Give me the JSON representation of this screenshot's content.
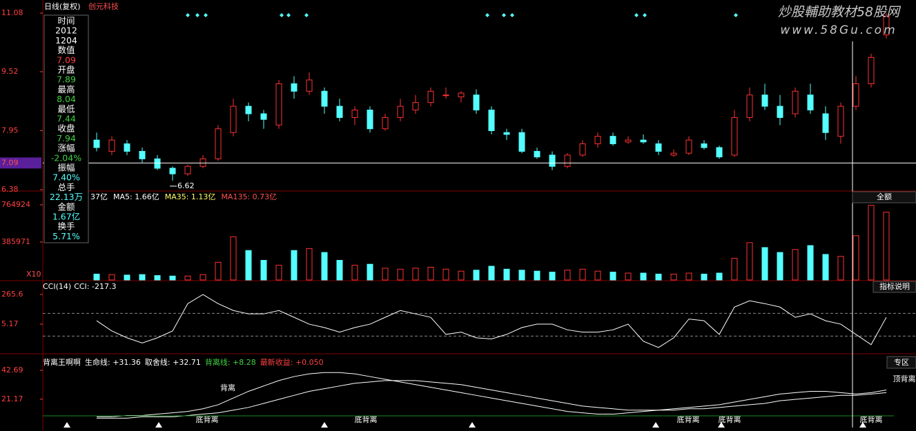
{
  "header": {
    "period": "日线(复权)",
    "stock": "创元科技"
  },
  "watermark": {
    "title": "炒股輔助教材58股网",
    "url": "www.58Gu.com"
  },
  "info_panel": [
    {
      "text": "时间",
      "color": "#ffffff"
    },
    {
      "text": "2012",
      "color": "#ffffff"
    },
    {
      "text": "1204",
      "color": "#ffffff"
    },
    {
      "text": "数值",
      "color": "#ffffff"
    },
    {
      "text": "7.09",
      "color": "#ff4040"
    },
    {
      "text": "开盘",
      "color": "#ffffff"
    },
    {
      "text": "7.89",
      "color": "#40d040"
    },
    {
      "text": "最高",
      "color": "#ffffff"
    },
    {
      "text": "8.04",
      "color": "#40d040"
    },
    {
      "text": "最低",
      "color": "#ffffff"
    },
    {
      "text": "7.44",
      "color": "#40d040"
    },
    {
      "text": "收盘",
      "color": "#ffffff"
    },
    {
      "text": "7.94",
      "color": "#40d040"
    },
    {
      "text": "涨幅",
      "color": "#ffffff"
    },
    {
      "text": "-2.04%",
      "color": "#40d040"
    },
    {
      "text": "振幅",
      "color": "#ffffff"
    },
    {
      "text": "7.40%",
      "color": "#54ffff"
    },
    {
      "text": "总手",
      "color": "#ffffff"
    },
    {
      "text": "22.13万",
      "color": "#54ffff"
    },
    {
      "text": "金额",
      "color": "#ffffff"
    },
    {
      "text": "1.67亿",
      "color": "#54ffff"
    },
    {
      "text": "换手",
      "color": "#ffffff"
    },
    {
      "text": "5.71%",
      "color": "#54ffff"
    }
  ],
  "buttons": {
    "volume": "全额",
    "cci": "指标说明",
    "indicator": "专区"
  },
  "chart_data": [
    {
      "type": "candlestick",
      "up_color": "#ff3232",
      "down_color": "#54ffff",
      "open": [
        7.7,
        7.4,
        7.6,
        7.4,
        7.2,
        6.95,
        6.8,
        7.0,
        7.2,
        7.9,
        8.6,
        8.4,
        8.1,
        9.2,
        9.0,
        9.0,
        8.6,
        8.3,
        8.5,
        8.0,
        8.3,
        8.5,
        8.7,
        8.9,
        8.85,
        8.9,
        8.5,
        7.9,
        7.9,
        7.4,
        7.3,
        7.0,
        7.3,
        7.6,
        7.8,
        7.65,
        7.7,
        7.6,
        7.3,
        7.35,
        7.6,
        7.5,
        7.3,
        8.3,
        8.9,
        8.6,
        8.4,
        8.9,
        8.4,
        7.8,
        8.6,
        9.2,
        10.5
      ],
      "high": [
        7.9,
        7.8,
        7.7,
        7.5,
        7.3,
        7.0,
        7.05,
        7.3,
        8.1,
        8.8,
        8.7,
        8.5,
        9.3,
        9.4,
        9.5,
        9.1,
        8.8,
        8.6,
        8.6,
        8.4,
        8.8,
        8.9,
        9.1,
        9.1,
        9.0,
        9.05,
        8.6,
        8.0,
        8.0,
        7.5,
        7.4,
        7.35,
        7.7,
        7.9,
        7.9,
        7.8,
        7.85,
        7.7,
        7.45,
        7.8,
        7.7,
        7.55,
        8.5,
        9.1,
        9.2,
        8.9,
        9.1,
        9.2,
        8.6,
        8.7,
        9.4,
        10.0,
        11.08
      ],
      "low": [
        7.4,
        7.3,
        7.3,
        7.1,
        6.9,
        6.62,
        6.75,
        6.95,
        7.15,
        7.8,
        8.2,
        8.0,
        8.0,
        8.8,
        8.9,
        8.4,
        8.2,
        8.1,
        7.9,
        7.95,
        8.2,
        8.4,
        8.6,
        8.8,
        8.7,
        8.4,
        7.85,
        7.7,
        7.35,
        7.2,
        6.9,
        6.95,
        7.25,
        7.5,
        7.55,
        7.6,
        7.6,
        7.3,
        7.25,
        7.3,
        7.45,
        7.2,
        7.25,
        8.2,
        8.5,
        8.1,
        8.3,
        8.4,
        7.7,
        7.6,
        8.5,
        9.1,
        10.4
      ],
      "close": [
        7.5,
        7.7,
        7.4,
        7.2,
        6.95,
        6.8,
        7.0,
        7.2,
        8.0,
        8.6,
        8.4,
        8.25,
        9.2,
        9.0,
        9.3,
        8.6,
        8.3,
        8.5,
        8.0,
        8.3,
        8.6,
        8.7,
        9.0,
        8.9,
        8.95,
        8.5,
        7.95,
        7.85,
        7.4,
        7.25,
        7.0,
        7.3,
        7.6,
        7.8,
        7.6,
        7.7,
        7.65,
        7.4,
        7.35,
        7.7,
        7.5,
        7.25,
        8.3,
        8.9,
        8.6,
        8.3,
        9.0,
        8.5,
        7.9,
        8.6,
        9.2,
        9.9,
        11.0
      ],
      "ylim": [
        6.38,
        11.08
      ],
      "yticks": [
        11.08,
        9.52,
        7.95,
        6.38
      ],
      "price_line": 7.09,
      "axis_color": "#ff4040"
    },
    {
      "type": "bar",
      "legend": [
        {
          "text": "37亿",
          "color": "#ffffff"
        },
        {
          "text": "MA5: 1.66亿",
          "color": "#ffffff"
        },
        {
          "text": "MA35: 1.13亿",
          "color": "#ffff66"
        },
        {
          "text": "MA135: 0.73亿",
          "color": "#ff5050"
        }
      ],
      "unit_label": "X10",
      "values": [
        60000,
        55000,
        50000,
        55000,
        45000,
        40000,
        40000,
        55000,
        180000,
        440000,
        300000,
        200000,
        150000,
        300000,
        320000,
        280000,
        200000,
        150000,
        160000,
        120000,
        110000,
        120000,
        130000,
        110000,
        90000,
        100000,
        140000,
        110000,
        100000,
        90000,
        80000,
        100000,
        110000,
        90000,
        80000,
        70000,
        70000,
        60000,
        60000,
        70000,
        60000,
        70000,
        220000,
        380000,
        330000,
        280000,
        310000,
        350000,
        260000,
        240000,
        450000,
        760000,
        690000
      ],
      "ylim": [
        0,
        898000
      ],
      "yticks": [
        764924,
        385971
      ],
      "axis_color": "#ff4040"
    },
    {
      "type": "line",
      "name": "CCI(14)",
      "legend": "CCI: -217.3",
      "color": "#ffffff",
      "values": [
        35,
        -55,
        -115,
        -160,
        -115,
        -55,
        185,
        265,
        185,
        125,
        95,
        95,
        125,
        65,
        5,
        -25,
        -65,
        -25,
        5,
        65,
        125,
        95,
        65,
        -85,
        -65,
        -115,
        -125,
        -85,
        -25,
        5,
        5,
        -45,
        -65,
        -65,
        -45,
        5,
        -145,
        -200,
        -115,
        50,
        35,
        -85,
        155,
        210,
        185,
        155,
        65,
        95,
        35,
        5,
        -85,
        -175,
        65
      ],
      "ylim": [
        -249,
        368.6
      ],
      "yticks": [
        265.6,
        5.17
      ],
      "ref_lines": [
        100,
        -100
      ],
      "axis_color": "#ff4040"
    },
    {
      "type": "line",
      "name": "背离王啊啊",
      "series": [
        {
          "name": "生命线: +31.36",
          "color": "#ffffff",
          "values": [
            8,
            8,
            9,
            9,
            10,
            11,
            12,
            14,
            17,
            22,
            27,
            31,
            35,
            38,
            40,
            41,
            41,
            40,
            38,
            36,
            34,
            32,
            30,
            28,
            26,
            24,
            22,
            20,
            18,
            16,
            14,
            12,
            11,
            10,
            10,
            11,
            12,
            13,
            14,
            15,
            16,
            17,
            19,
            21,
            23,
            25,
            26,
            27,
            27,
            26,
            25,
            26,
            28
          ]
        },
        {
          "name": "取舍线: +32.71",
          "color": "#ffffff",
          "values": [
            7,
            7,
            7,
            8,
            8,
            8,
            9,
            10,
            11,
            13,
            15,
            18,
            21,
            24,
            27,
            29,
            31,
            33,
            34,
            35,
            35,
            35,
            34,
            33,
            32,
            30,
            28,
            26,
            24,
            22,
            20,
            18,
            16,
            15,
            14,
            13,
            13,
            13,
            13,
            14,
            14,
            15,
            16,
            17,
            18,
            20,
            21,
            22,
            23,
            24,
            24,
            25,
            26
          ]
        }
      ],
      "legend_extra": [
        {
          "text": "背离线: +8.28",
          "color": "#40d040"
        },
        {
          "text": "最新收益: +0.050",
          "color": "#ff4040"
        }
      ],
      "annotations": [
        "底背离",
        "背离",
        "底背离",
        "底背离",
        "底背离",
        "底背离",
        "顶背离"
      ],
      "ylim": [
        0,
        51.4
      ],
      "yticks": [
        42.69,
        21.17
      ],
      "axis_color": "#ff4040"
    }
  ]
}
